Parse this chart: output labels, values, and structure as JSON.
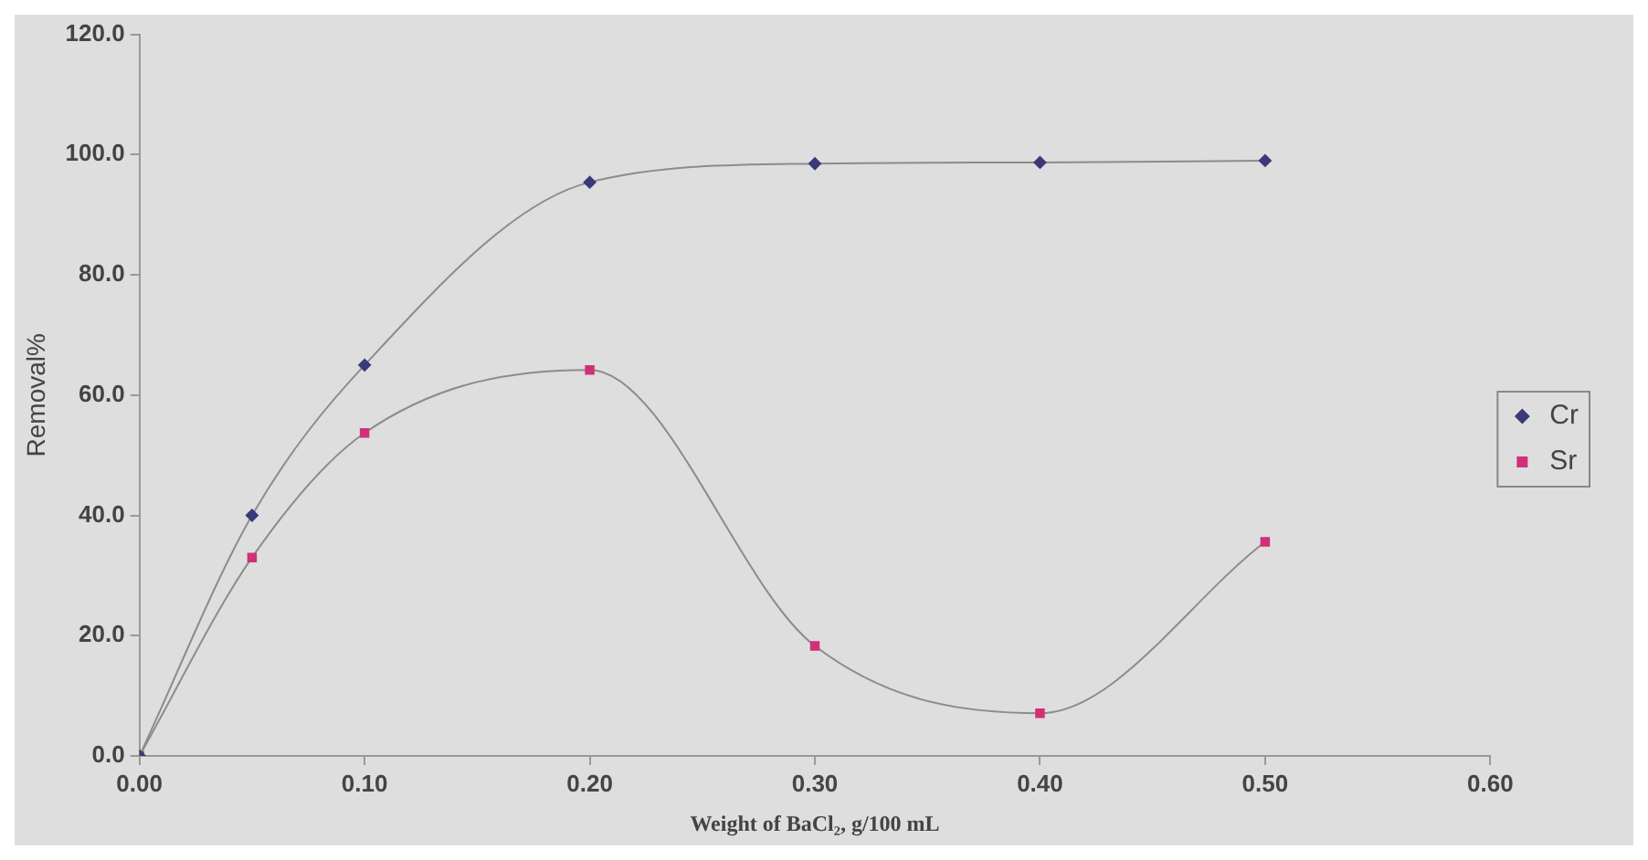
{
  "chart_data": {
    "type": "line",
    "xlabel": "Weight of BaCl₂, g/100 mL",
    "ylabel": "Removal%",
    "x": [
      0,
      0.05,
      0.1,
      0.2,
      0.3,
      0.4,
      0.5
    ],
    "series": [
      {
        "name": "Cr",
        "color": "#3a3a78",
        "marker": "diamond",
        "values": [
          0,
          40.0,
          65.0,
          95.4,
          98.5,
          98.7,
          99.0
        ]
      },
      {
        "name": "Sr",
        "color": "#d0307a",
        "marker": "square",
        "values": [
          0,
          33.0,
          53.7,
          64.2,
          18.3,
          7.1,
          35.6
        ]
      }
    ],
    "xlim": [
      0,
      0.6
    ],
    "xticks": [
      {
        "value": 0,
        "label": "0.00"
      },
      {
        "value": 0.1,
        "label": "0.10"
      },
      {
        "value": 0.2,
        "label": "0.20"
      },
      {
        "value": 0.3,
        "label": "0.30"
      },
      {
        "value": 0.4,
        "label": "0.40"
      },
      {
        "value": 0.5,
        "label": "0.50"
      },
      {
        "value": 0.6,
        "label": "0.60"
      }
    ],
    "ylim": [
      0,
      120
    ],
    "yticks": [
      {
        "value": 0,
        "label": "0.0"
      },
      {
        "value": 20,
        "label": "20.0"
      },
      {
        "value": 40,
        "label": "40.0"
      },
      {
        "value": 60,
        "label": "60.0"
      },
      {
        "value": 80,
        "label": "80.0"
      },
      {
        "value": 100,
        "label": "100.0"
      },
      {
        "value": 120,
        "label": "120.0"
      }
    ],
    "grid": false,
    "legend": "right",
    "line_style": "solid"
  }
}
